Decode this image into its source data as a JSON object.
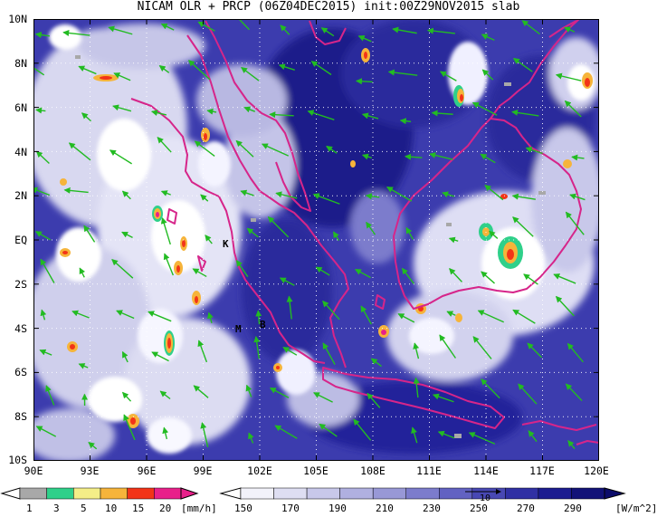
{
  "title": "NICAM OLR + PRCP (06Z04DEC2015) init:00Z29NOV2015 slab",
  "map": {
    "lon_labels": [
      "90E",
      "93E",
      "96E",
      "99E",
      "102E",
      "105E",
      "108E",
      "111E",
      "114E",
      "117E",
      "120E"
    ],
    "lat_labels": [
      "10N",
      "8N",
      "6N",
      "4N",
      "2N",
      "EQ",
      "2S",
      "4S",
      "6S",
      "8S",
      "10S"
    ],
    "station_markers": [
      {
        "label": "K",
        "lon": 100.4,
        "lat": -0.3
      },
      {
        "label": "M",
        "lon": 101.6,
        "lat": -4.0
      },
      {
        "label": "B",
        "lon": 102.3,
        "lat": -3.8
      }
    ],
    "vector_reference_label": "10"
  },
  "colorbars": {
    "precip": {
      "ticks": [
        "1",
        "3",
        "5",
        "10",
        "15",
        "20"
      ],
      "unit": "[mm/h]",
      "colors": [
        "#a8a8a8",
        "#2fd08a",
        "#f4ee88",
        "#f6b43a",
        "#f23418",
        "#e8208a"
      ]
    },
    "olr": {
      "ticks": [
        "150",
        "170",
        "190",
        "210",
        "230",
        "250",
        "270",
        "290"
      ],
      "unit": "[W/m^2]",
      "colors": [
        "#f2f2fa",
        "#dedef2",
        "#c8c8ea",
        "#b0b0e0",
        "#9898d6",
        "#7c7ccc",
        "#6262c2",
        "#4848b4",
        "#3030a4",
        "#1c1c90",
        "#121278"
      ]
    }
  }
}
